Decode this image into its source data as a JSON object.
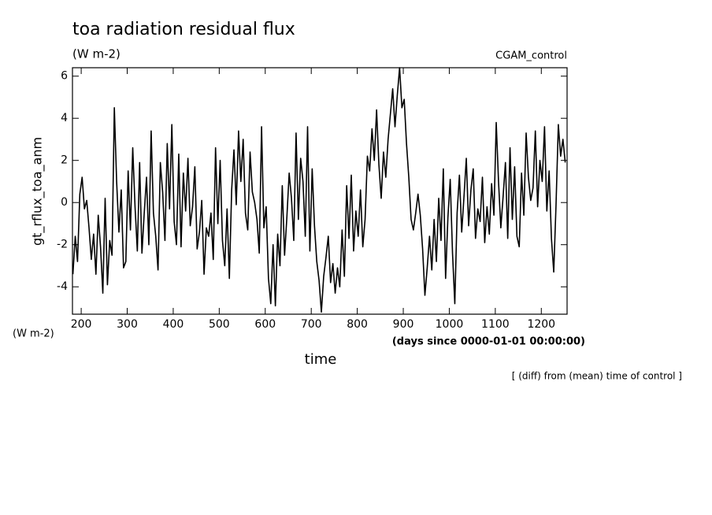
{
  "chart_data": {
    "type": "line",
    "title": "toa radiation residual flux",
    "subtitle": "(W m-2)",
    "annotation_right": "CGAM_control",
    "ylabel": "gt_rflux_toa_anm",
    "yunits": "(W m-2)",
    "xunits": "(days since 0000-01-01 00:00:00)",
    "xlabel": "time",
    "footnote": "[ (diff) from (mean) time of control ]",
    "color": "#000000",
    "xlim": [
      181,
      1256
    ],
    "ylim": [
      -5.3,
      6.4
    ],
    "xticks": [
      200,
      300,
      400,
      500,
      600,
      700,
      800,
      900,
      1000,
      1100,
      1200
    ],
    "yticks": [
      -4,
      -2,
      0,
      2,
      4,
      6
    ],
    "x": [
      182,
      187,
      192,
      197,
      202,
      207,
      212,
      217,
      222,
      227,
      232,
      237,
      242,
      247,
      252,
      257,
      262,
      267,
      272,
      277,
      282,
      287,
      292,
      297,
      302,
      307,
      312,
      317,
      322,
      327,
      332,
      337,
      342,
      347,
      352,
      357,
      362,
      367,
      372,
      377,
      382,
      387,
      392,
      397,
      402,
      407,
      412,
      417,
      422,
      427,
      432,
      437,
      442,
      447,
      452,
      457,
      462,
      467,
      472,
      477,
      482,
      487,
      492,
      497,
      502,
      507,
      512,
      517,
      522,
      527,
      532,
      537,
      542,
      547,
      552,
      557,
      562,
      567,
      572,
      577,
      582,
      587,
      592,
      597,
      602,
      607,
      612,
      617,
      622,
      627,
      632,
      637,
      642,
      647,
      652,
      657,
      662,
      667,
      672,
      677,
      682,
      687,
      692,
      697,
      702,
      707,
      712,
      717,
      722,
      727,
      732,
      737,
      742,
      747,
      752,
      757,
      762,
      767,
      772,
      777,
      782,
      787,
      792,
      797,
      802,
      807,
      812,
      817,
      822,
      827,
      832,
      837,
      842,
      847,
      852,
      857,
      862,
      867,
      872,
      877,
      882,
      887,
      892,
      897,
      902,
      907,
      912,
      917,
      922,
      927,
      932,
      937,
      942,
      947,
      952,
      957,
      962,
      967,
      972,
      977,
      982,
      987,
      992,
      997,
      1002,
      1007,
      1012,
      1017,
      1022,
      1027,
      1032,
      1037,
      1042,
      1047,
      1052,
      1057,
      1062,
      1067,
      1072,
      1077,
      1082,
      1087,
      1092,
      1097,
      1102,
      1107,
      1112,
      1117,
      1122,
      1127,
      1132,
      1137,
      1142,
      1147,
      1152,
      1157,
      1162,
      1167,
      1172,
      1177,
      1182,
      1187,
      1192,
      1197,
      1202,
      1207,
      1212,
      1217,
      1222,
      1227,
      1232,
      1237,
      1242,
      1247,
      1252
    ],
    "values": [
      -3.4,
      -1.6,
      -2.8,
      0.4,
      1.2,
      -0.3,
      0.1,
      -1.2,
      -2.7,
      -1.5,
      -3.4,
      -0.6,
      -2.1,
      -4.3,
      0.2,
      -3.9,
      -1.8,
      -2.5,
      4.5,
      1.0,
      -1.4,
      0.6,
      -3.1,
      -2.8,
      1.5,
      -1.3,
      2.6,
      -0.2,
      -2.3,
      1.9,
      -2.4,
      -0.5,
      1.2,
      -2.0,
      3.4,
      -0.5,
      -1.6,
      -3.2,
      1.9,
      0.5,
      -1.8,
      2.8,
      -0.3,
      3.7,
      -0.9,
      -2.0,
      2.3,
      -2.1,
      1.4,
      -0.4,
      2.1,
      -1.1,
      -0.2,
      1.7,
      -2.2,
      -1.4,
      0.1,
      -3.4,
      -1.2,
      -1.6,
      -0.5,
      -2.7,
      2.6,
      -1.0,
      2.0,
      -1.8,
      -3.0,
      -0.3,
      -3.6,
      0.6,
      2.5,
      -0.1,
      3.4,
      1.0,
      3.0,
      -0.5,
      -1.3,
      2.4,
      0.5,
      0.0,
      -0.8,
      -2.4,
      3.6,
      -1.2,
      -0.2,
      -3.6,
      -4.8,
      -2.0,
      -4.9,
      -1.5,
      -3.0,
      0.8,
      -2.5,
      -0.7,
      1.4,
      0.2,
      -1.8,
      3.3,
      -0.8,
      2.1,
      1.0,
      -1.6,
      3.6,
      -2.3,
      1.6,
      -1.1,
      -2.8,
      -3.7,
      -5.2,
      -3.5,
      -2.6,
      -1.6,
      -3.8,
      -2.9,
      -4.3,
      -3.1,
      -4.0,
      -1.3,
      -3.5,
      0.8,
      -1.7,
      1.3,
      -2.3,
      -0.4,
      -1.6,
      0.6,
      -2.1,
      -0.8,
      2.2,
      1.5,
      3.5,
      2.0,
      4.4,
      1.8,
      0.2,
      2.4,
      1.2,
      3.0,
      4.2,
      5.4,
      3.6,
      5.1,
      6.4,
      4.5,
      4.9,
      2.8,
      1.2,
      -0.8,
      -1.3,
      -0.5,
      0.4,
      -0.6,
      -2.2,
      -4.4,
      -3.1,
      -1.6,
      -3.2,
      -0.8,
      -2.8,
      0.2,
      -1.8,
      1.6,
      -3.6,
      -0.7,
      1.1,
      -2.4,
      -4.8,
      -0.5,
      1.3,
      -1.4,
      0.3,
      2.1,
      -1.1,
      0.6,
      1.6,
      -1.7,
      -0.3,
      -0.9,
      1.2,
      -1.9,
      -0.2,
      -1.5,
      0.9,
      -0.6,
      3.8,
      1.0,
      -1.2,
      0.3,
      1.9,
      -1.7,
      2.6,
      -0.8,
      1.7,
      -1.6,
      -2.1,
      1.4,
      -0.6,
      3.3,
      1.2,
      0.1,
      0.7,
      3.4,
      -0.2,
      2.0,
      1.0,
      3.6,
      -0.4,
      1.5,
      -1.7,
      -3.3,
      -0.1,
      3.7,
      2.2,
      3.0,
      1.9
    ]
  }
}
